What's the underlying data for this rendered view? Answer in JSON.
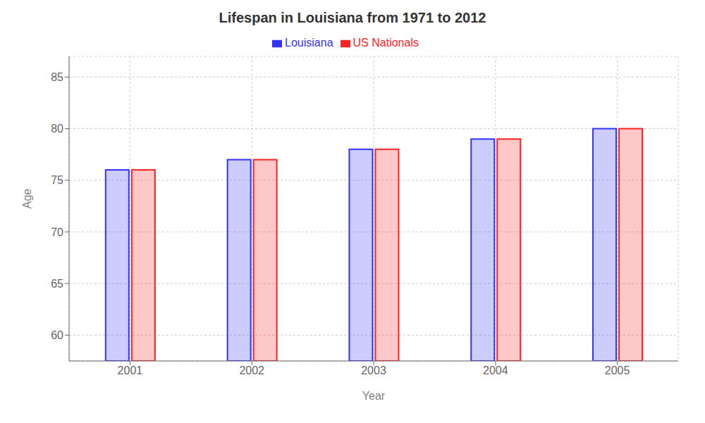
{
  "chart_data": {
    "type": "bar",
    "title": "Lifespan in Louisiana from 1971 to 2012",
    "xlabel": "Year",
    "ylabel": "Age",
    "categories": [
      "2001",
      "2002",
      "2003",
      "2004",
      "2005"
    ],
    "series": [
      {
        "name": "Louisiana",
        "color": "#3333ff",
        "values": [
          76,
          77,
          78,
          79,
          80
        ]
      },
      {
        "name": "US Nationals",
        "color": "#ff2222",
        "values": [
          76,
          77,
          78,
          79,
          80
        ]
      }
    ],
    "ylim": [
      57.5,
      87
    ],
    "yticks": [
      60,
      65,
      70,
      75,
      80,
      85
    ],
    "grid": true,
    "legend": "top"
  }
}
